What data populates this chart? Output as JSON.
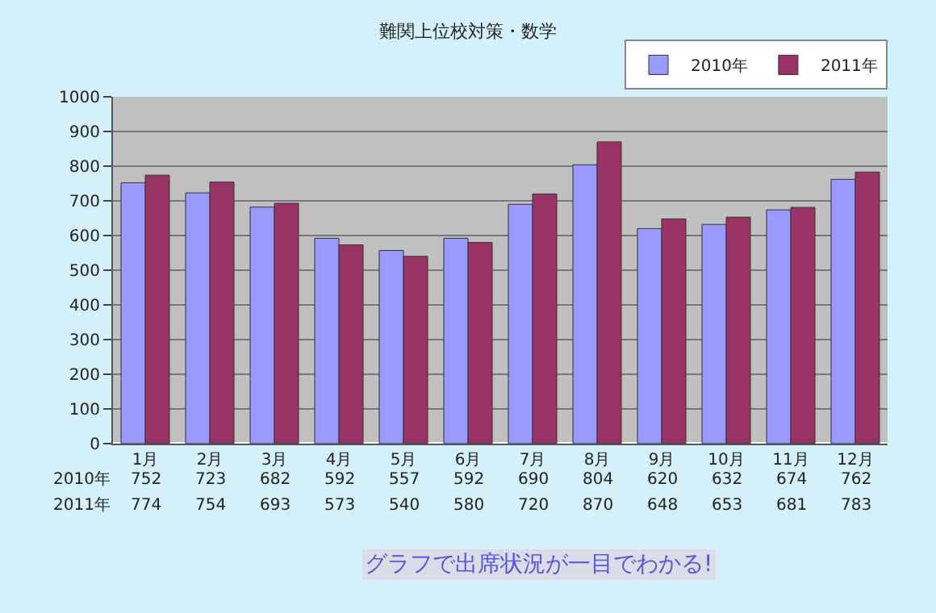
{
  "chart_data": {
    "type": "bar",
    "title": "難関上位校対策・数学",
    "categories": [
      "1月",
      "2月",
      "3月",
      "4月",
      "5月",
      "6月",
      "7月",
      "8月",
      "9月",
      "10月",
      "11月",
      "12月"
    ],
    "series": [
      {
        "name": "2010年",
        "color": "#9999ff",
        "values": [
          752,
          723,
          682,
          592,
          557,
          592,
          690,
          804,
          620,
          632,
          674,
          762
        ]
      },
      {
        "name": "2011年",
        "color": "#993366",
        "values": [
          774,
          754,
          693,
          573,
          540,
          580,
          720,
          870,
          648,
          653,
          681,
          783
        ]
      }
    ],
    "ylim": [
      0,
      1000
    ],
    "yticks": [
      0,
      100,
      200,
      300,
      400,
      500,
      600,
      700,
      800,
      900,
      1000
    ],
    "grid": "y",
    "legend": "top right",
    "data_labels": true,
    "annotations": [
      "グラフで出席状況が一目でわかる!"
    ]
  }
}
